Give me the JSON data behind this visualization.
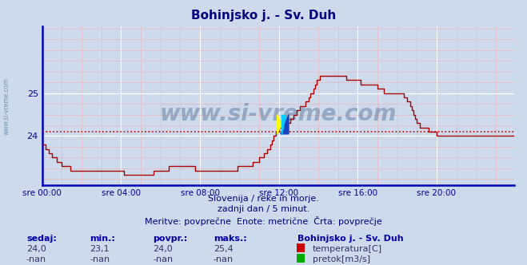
{
  "title": "Bohinjsko j. - Sv. Duh",
  "title_color": "#000080",
  "bg_color": "#ccdaeb",
  "plot_bg_color": "#ccdaeb",
  "grid_color_major": "#ffffff",
  "grid_color_minor": "#f0b0b0",
  "line_color": "#aa0000",
  "avg_line_color": "#cc0000",
  "avg_value": 24.1,
  "x_min": 0,
  "x_max": 287,
  "y_min": 22.85,
  "y_max": 26.55,
  "y_ticks": [
    24,
    25
  ],
  "x_tick_labels": [
    "sre 00:00",
    "sre 04:00",
    "sre 08:00",
    "sre 12:00",
    "sre 16:00",
    "sre 20:00"
  ],
  "x_tick_positions": [
    0,
    48,
    96,
    144,
    192,
    240
  ],
  "axis_color": "#0000bb",
  "tick_color": "#000099",
  "subtitle1": "Slovenija / reke in morje.",
  "subtitle2": "zadnji dan / 5 minut.",
  "subtitle3": "Meritve: povprečne  Enote: metrične  Črta: povprečje",
  "subtitle_color": "#000080",
  "footer_label1": "sedaj:",
  "footer_label2": "min.:",
  "footer_label3": "povpr.:",
  "footer_label4": "maks.:",
  "footer_val1": "24,0",
  "footer_val2": "23,1",
  "footer_val3": "24,0",
  "footer_val4": "25,4",
  "station_name": "Bohinjsko j. - Sv. Duh",
  "legend1": "temperatura[C]",
  "legend2": "pretok[m3/s]",
  "legend1_color": "#cc0000",
  "legend2_color": "#00aa00",
  "watermark": "www.si-vreme.com",
  "watermark_color": "#1a3a6a",
  "watermark_alpha": 0.3,
  "temperature_data": [
    23.8,
    23.8,
    23.7,
    23.7,
    23.6,
    23.6,
    23.5,
    23.5,
    23.5,
    23.4,
    23.4,
    23.4,
    23.3,
    23.3,
    23.3,
    23.3,
    23.3,
    23.2,
    23.2,
    23.2,
    23.2,
    23.2,
    23.2,
    23.2,
    23.2,
    23.2,
    23.2,
    23.2,
    23.2,
    23.2,
    23.2,
    23.2,
    23.2,
    23.2,
    23.2,
    23.2,
    23.2,
    23.2,
    23.2,
    23.2,
    23.2,
    23.2,
    23.2,
    23.2,
    23.2,
    23.2,
    23.2,
    23.2,
    23.2,
    23.2,
    23.1,
    23.1,
    23.1,
    23.1,
    23.1,
    23.1,
    23.1,
    23.1,
    23.1,
    23.1,
    23.1,
    23.1,
    23.1,
    23.1,
    23.1,
    23.1,
    23.1,
    23.1,
    23.2,
    23.2,
    23.2,
    23.2,
    23.2,
    23.2,
    23.2,
    23.2,
    23.2,
    23.3,
    23.3,
    23.3,
    23.3,
    23.3,
    23.3,
    23.3,
    23.3,
    23.3,
    23.3,
    23.3,
    23.3,
    23.3,
    23.3,
    23.3,
    23.3,
    23.2,
    23.2,
    23.2,
    23.2,
    23.2,
    23.2,
    23.2,
    23.2,
    23.2,
    23.2,
    23.2,
    23.2,
    23.2,
    23.2,
    23.2,
    23.2,
    23.2,
    23.2,
    23.2,
    23.2,
    23.2,
    23.2,
    23.2,
    23.2,
    23.2,
    23.2,
    23.3,
    23.3,
    23.3,
    23.3,
    23.3,
    23.3,
    23.3,
    23.3,
    23.3,
    23.4,
    23.4,
    23.4,
    23.4,
    23.5,
    23.5,
    23.5,
    23.6,
    23.6,
    23.7,
    23.7,
    23.8,
    23.9,
    24.0,
    24.1,
    24.1,
    24.2,
    24.2,
    24.2,
    24.3,
    24.3,
    24.3,
    24.3,
    24.4,
    24.4,
    24.5,
    24.5,
    24.6,
    24.6,
    24.7,
    24.7,
    24.7,
    24.8,
    24.8,
    24.9,
    25.0,
    25.0,
    25.1,
    25.2,
    25.3,
    25.3,
    25.4,
    25.4,
    25.4,
    25.4,
    25.4,
    25.4,
    25.4,
    25.4,
    25.4,
    25.4,
    25.4,
    25.4,
    25.4,
    25.4,
    25.4,
    25.4,
    25.3,
    25.3,
    25.3,
    25.3,
    25.3,
    25.3,
    25.3,
    25.3,
    25.3,
    25.2,
    25.2,
    25.2,
    25.2,
    25.2,
    25.2,
    25.2,
    25.2,
    25.2,
    25.2,
    25.1,
    25.1,
    25.1,
    25.1,
    25.0,
    25.0,
    25.0,
    25.0,
    25.0,
    25.0,
    25.0,
    25.0,
    25.0,
    25.0,
    25.0,
    25.0,
    24.9,
    24.9,
    24.8,
    24.8,
    24.7,
    24.6,
    24.5,
    24.4,
    24.3,
    24.3,
    24.2,
    24.2,
    24.2,
    24.2,
    24.2,
    24.1,
    24.1,
    24.1,
    24.1,
    24.1,
    24.0,
    24.0,
    24.0,
    24.0,
    24.0,
    24.0,
    24.0,
    24.0,
    24.0,
    24.0,
    24.0,
    24.0,
    24.0,
    24.0,
    24.0,
    24.0,
    24.0,
    24.0,
    24.0,
    24.0,
    24.0,
    24.0,
    24.0,
    24.0,
    24.0,
    24.0,
    24.0,
    24.0,
    24.0,
    24.0,
    24.0,
    24.0,
    24.0,
    24.0,
    24.0,
    24.0,
    24.0,
    24.0,
    24.0,
    24.0,
    24.0,
    24.0,
    24.0,
    24.0,
    24.0,
    24.0,
    24.0,
    24.0
  ]
}
